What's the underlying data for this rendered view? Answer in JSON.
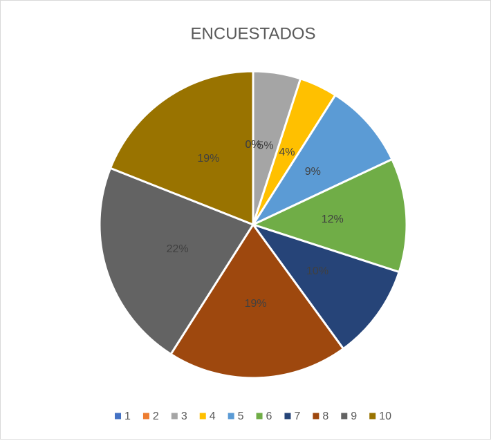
{
  "chart_data": {
    "type": "pie",
    "title": "ENCUESTADOS",
    "categories": [
      "1",
      "2",
      "3",
      "4",
      "5",
      "6",
      "7",
      "8",
      "9",
      "10"
    ],
    "values": [
      0,
      0,
      5,
      4,
      9,
      12,
      10,
      19,
      22,
      19
    ],
    "value_labels": [
      "0%",
      "0%",
      "5%",
      "4%",
      "9%",
      "12%",
      "10%",
      "19%",
      "22%",
      "19%"
    ],
    "colors": [
      "#4472c4",
      "#ed7d31",
      "#a5a5a5",
      "#ffc000",
      "#5b9bd5",
      "#70ad47",
      "#264478",
      "#9e480e",
      "#636363",
      "#997300"
    ],
    "legend": "bottom"
  }
}
